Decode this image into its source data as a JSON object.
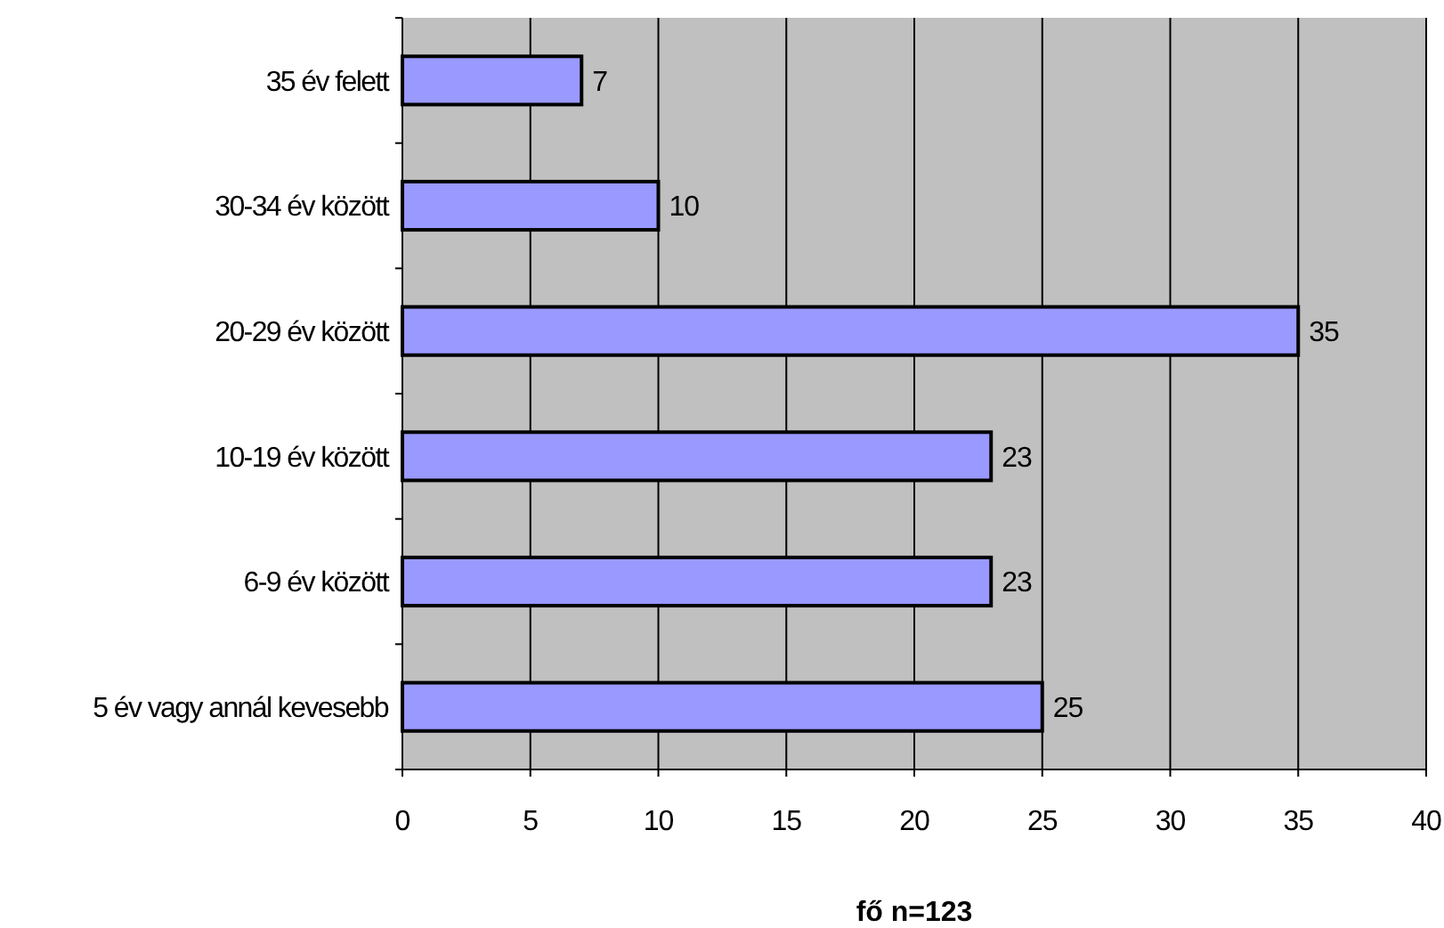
{
  "chart_data": {
    "type": "bar",
    "orientation": "horizontal",
    "xlabel": "fő n=123",
    "categories": [
      "35 év felett",
      "30-34 év között",
      "20-29 év között",
      "10-19 év között",
      "6-9 év között",
      "5 év vagy annál kevesebb"
    ],
    "values": [
      7,
      10,
      35,
      23,
      23,
      25
    ],
    "color": "#9999ff",
    "xlim": [
      0,
      40
    ],
    "xticks": [
      0,
      5,
      10,
      15,
      20,
      25,
      30,
      35,
      40
    ],
    "grid": "x",
    "data_labels": true
  }
}
